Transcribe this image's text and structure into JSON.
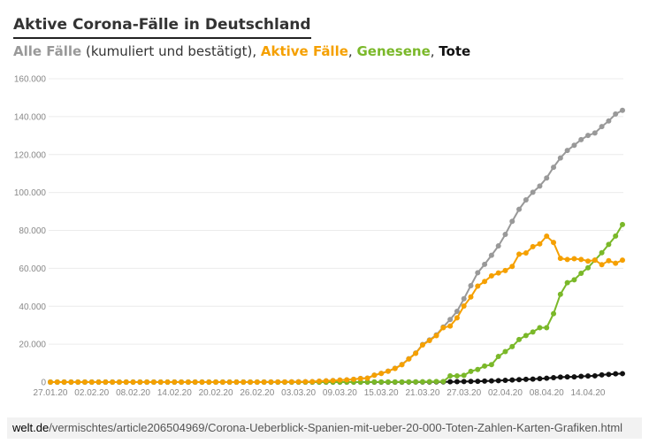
{
  "header": {
    "title": "Aktive Corona-Fälle in Deutschland",
    "legend": [
      {
        "label": "Alle Fälle",
        "color": "#999999"
      },
      {
        "label": " (kumuliert und bestätigt), ",
        "color": "#333333",
        "plain": true
      },
      {
        "label": "Aktive Fälle",
        "color": "#f5a000"
      },
      {
        "label": ", ",
        "color": "#333333",
        "plain": true
      },
      {
        "label": "Genesene",
        "color": "#7ab829"
      },
      {
        "label": ", ",
        "color": "#333333",
        "plain": true
      },
      {
        "label": "Tote",
        "color": "#111111"
      }
    ]
  },
  "footer": {
    "domain": "welt.de",
    "path": "/vermischtes/article206504969/Corona-Ueberblick-Spanien-mit-ueber-20-000-Toten-Zahlen-Karten-Grafiken.html"
  },
  "chart_data": {
    "type": "line",
    "title": "Aktive Corona-Fälle in Deutschland",
    "start_date": "27.01.20",
    "end_date": "18.04.20",
    "x_tick_labels": [
      "27.01.20",
      "02.02.20",
      "08.02.20",
      "14.02.20",
      "20.02.20",
      "26.02.20",
      "03.03.20",
      "09.03.20",
      "15.03.20",
      "21.03.20",
      "27.03.20",
      "02.04.20",
      "08.04.20",
      "14.04.20"
    ],
    "x_tick_every_days": 6,
    "y_tick_labels": [
      "0",
      "20.000",
      "40.000",
      "60.000",
      "80.000",
      "100.000",
      "120.000",
      "140.000",
      "160.000"
    ],
    "ylim": [
      0,
      160000
    ],
    "grid": true,
    "series": [
      {
        "name": "Alle Fälle",
        "color": "#999999",
        "values": [
          1,
          4,
          4,
          4,
          5,
          8,
          10,
          12,
          12,
          12,
          12,
          13,
          13,
          14,
          14,
          16,
          16,
          16,
          16,
          16,
          16,
          16,
          16,
          16,
          16,
          16,
          16,
          16,
          16,
          16,
          17,
          27,
          46,
          48,
          79,
          130,
          159,
          196,
          262,
          482,
          670,
          799,
          1040,
          1176,
          1457,
          1908,
          2078,
          3675,
          4585,
          5795,
          7272,
          9257,
          12327,
          15320,
          19848,
          22213,
          24873,
          29056,
          32986,
          37323,
          43938,
          50871,
          57695,
          62095,
          66885,
          71808,
          77872,
          84794,
          91159,
          96092,
          100123,
          103374,
          107663,
          113296,
          118181,
          122171,
          124908,
          127854,
          130072,
          131359,
          134753,
          137698,
          141397,
          143342
        ]
      },
      {
        "name": "Tote",
        "color": "#111111",
        "values": [
          0,
          0,
          0,
          0,
          0,
          0,
          0,
          0,
          0,
          0,
          0,
          0,
          0,
          0,
          0,
          0,
          0,
          0,
          0,
          0,
          0,
          0,
          0,
          0,
          0,
          0,
          0,
          0,
          0,
          0,
          0,
          0,
          0,
          0,
          0,
          0,
          0,
          0,
          0,
          0,
          0,
          0,
          0,
          2,
          2,
          3,
          3,
          7,
          9,
          11,
          17,
          24,
          28,
          44,
          67,
          84,
          94,
          123,
          157,
          206,
          267,
          342,
          433,
          533,
          645,
          775,
          920,
          1107,
          1275,
          1444,
          1584,
          1810,
          2016,
          2349,
          2607,
          2767,
          2736,
          3022,
          3194,
          3294,
          3804,
          4052,
          4352,
          4459
        ]
      },
      {
        "name": "Genesene",
        "color": "#7ab829",
        "values": [
          0,
          0,
          0,
          0,
          0,
          0,
          0,
          0,
          0,
          0,
          0,
          0,
          0,
          0,
          0,
          0,
          1,
          1,
          1,
          1,
          1,
          1,
          1,
          1,
          1,
          1,
          1,
          14,
          14,
          14,
          14,
          16,
          16,
          16,
          16,
          16,
          16,
          16,
          16,
          16,
          17,
          18,
          18,
          18,
          18,
          25,
          25,
          46,
          46,
          46,
          67,
          67,
          105,
          113,
          180,
          233,
          266,
          266,
          3243,
          3243,
          3547,
          5673,
          6658,
          8481,
          9211,
          13500,
          16100,
          18700,
          22440,
          24575,
          26400,
          28700,
          28700,
          36081,
          46300,
          52407,
          53913,
          57400,
          60300,
          64300,
          68200,
          72600,
          77000,
          83114
        ]
      },
      {
        "name": "Aktive Fälle",
        "color": "#f5a000",
        "values": [
          1,
          4,
          4,
          4,
          5,
          8,
          10,
          12,
          12,
          12,
          12,
          13,
          13,
          14,
          14,
          15,
          15,
          15,
          15,
          15,
          15,
          15,
          15,
          15,
          15,
          15,
          15,
          2,
          2,
          2,
          3,
          11,
          30,
          32,
          63,
          114,
          143,
          180,
          246,
          466,
          653,
          781,
          1022,
          1156,
          1437,
          1880,
          2050,
          3621,
          4530,
          5738,
          7188,
          9166,
          12194,
          15163,
          19601,
          21896,
          24513,
          28667,
          29586,
          33874,
          40124,
          44871,
          50604,
          53081,
          56029,
          57533,
          58852,
          60987,
          67444,
          68077,
          71439,
          72864,
          76947,
          73647,
          65274,
          64637,
          65079,
          64690,
          63814,
          64307,
          61949,
          64007,
          62689,
          64339
        ]
      }
    ]
  }
}
